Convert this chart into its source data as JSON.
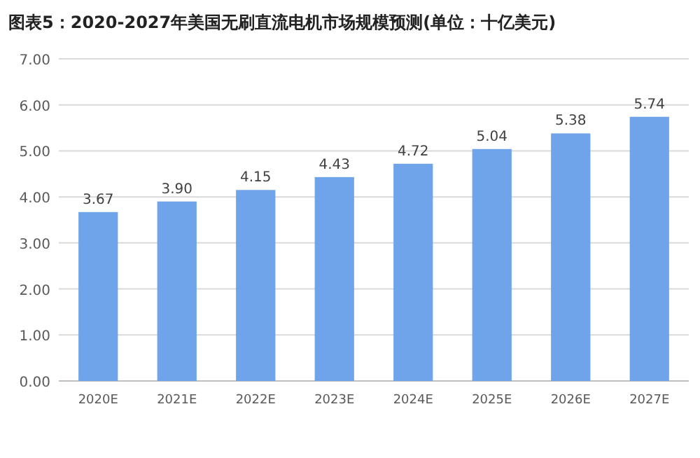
{
  "chart_data": {
    "type": "bar",
    "title": "图表5：2020-2027年美国无刷直流电机市场规模预测(单位：十亿美元)",
    "categories": [
      "2020E",
      "2021E",
      "2022E",
      "2023E",
      "2024E",
      "2025E",
      "2026E",
      "2027E"
    ],
    "values": [
      3.67,
      3.9,
      4.15,
      4.43,
      4.72,
      5.04,
      5.38,
      5.74
    ],
    "value_labels": [
      "3.67",
      "3.90",
      "4.15",
      "4.43",
      "4.72",
      "5.04",
      "5.38",
      "5.74"
    ],
    "color": "#6fa3ea",
    "ylim": [
      0,
      7
    ],
    "yticks": [
      {
        "value": 0,
        "label": "0.00"
      },
      {
        "value": 1,
        "label": "1.00"
      },
      {
        "value": 2,
        "label": "2.00"
      },
      {
        "value": 3,
        "label": "3.00"
      },
      {
        "value": 4,
        "label": "4.00"
      },
      {
        "value": 5,
        "label": "5.00"
      },
      {
        "value": 6,
        "label": "6.00"
      },
      {
        "value": 7,
        "label": "7.00"
      }
    ],
    "grid": "y"
  }
}
